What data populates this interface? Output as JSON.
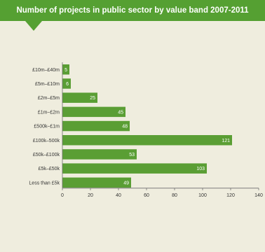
{
  "chart_data": {
    "type": "bar",
    "orientation": "horizontal",
    "title": "Number of projects in public sector by value band 2007-2011",
    "categories": [
      "£10m–£40m",
      "£5m–£10m",
      "£2m–£5m",
      "£1m–£2m",
      "£500k–£1m",
      "£100k–500k",
      "£50k–£100k",
      "£5k–£50k",
      "Less than £5k"
    ],
    "values": [
      5,
      6,
      25,
      45,
      48,
      121,
      53,
      103,
      49
    ],
    "x_ticks": [
      "0",
      "20",
      "40",
      "60",
      "80",
      "100",
      "120",
      "140"
    ],
    "xlim": [
      0,
      140
    ],
    "xlabel": "",
    "ylabel": "",
    "grid": false,
    "colors": {
      "bar": "#5a9e34",
      "header": "#55a032",
      "background": "#efedde"
    }
  }
}
